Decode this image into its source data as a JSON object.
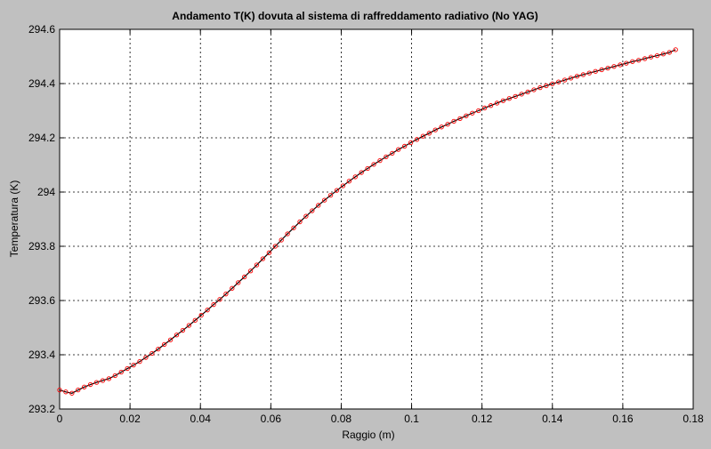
{
  "figure": {
    "background": "#c0c0c0"
  },
  "chart_data": {
    "type": "line",
    "title": "Andamento T(K) dovuta al sistema di raffreddamento radiativo (No YAG)",
    "xlabel": "Raggio (m)",
    "ylabel": "Temperatura (K)",
    "xlim": [
      0,
      0.18
    ],
    "ylim": [
      293.2,
      294.6
    ],
    "xticks": [
      0,
      0.02,
      0.04,
      0.06,
      0.08,
      0.1,
      0.12,
      0.14,
      0.16,
      0.18
    ],
    "xtick_labels": [
      "0",
      "0.02",
      "0.04",
      "0.06",
      "0.08",
      "0.1",
      "0.12",
      "0.14",
      "0.16",
      "0.18"
    ],
    "yticks": [
      293.2,
      293.4,
      293.6,
      293.8,
      294,
      294.2,
      294.4,
      294.6
    ],
    "ytick_labels": [
      "293.2",
      "293.4",
      "293.6",
      "293.8",
      "294",
      "294.2",
      "294.4",
      "294.6"
    ],
    "grid": true,
    "grid_style": "dotted",
    "line_color": "#000000",
    "marker": "circle",
    "marker_color": "#ff0000",
    "x_step": 0.00175,
    "series": [
      {
        "x": [
          0,
          0.00175,
          0.0035,
          0.00525,
          0.007,
          0.00875,
          0.0105,
          0.01225,
          0.014,
          0.01575,
          0.0175,
          0.01925,
          0.021,
          0.02275,
          0.0245,
          0.02625,
          0.028,
          0.02975,
          0.0315,
          0.03325,
          0.035,
          0.03675,
          0.0385,
          0.04025,
          0.042,
          0.04375,
          0.0455,
          0.04725,
          0.049,
          0.05075,
          0.0525,
          0.05425,
          0.056,
          0.05775,
          0.0595,
          0.06125,
          0.063,
          0.06475,
          0.0665,
          0.06825,
          0.07,
          0.07175,
          0.0735,
          0.07525,
          0.077,
          0.07875,
          0.0805,
          0.08225,
          0.084,
          0.08575,
          0.0875,
          0.08925,
          0.091,
          0.09275,
          0.0945,
          0.09625,
          0.098,
          0.09975,
          0.1015,
          0.10325,
          0.105,
          0.10675,
          0.1085,
          0.11025,
          0.112,
          0.11375,
          0.1155,
          0.11725,
          0.119,
          0.12075,
          0.1225,
          0.12425,
          0.126,
          0.12775,
          0.1295,
          0.13125,
          0.133,
          0.13475,
          0.1365,
          0.13825,
          0.14,
          0.14175,
          0.1435,
          0.14525,
          0.147,
          0.14875,
          0.1505,
          0.15225,
          0.154,
          0.15575,
          0.1575,
          0.15925,
          0.161,
          0.16275,
          0.1645,
          0.16625,
          0.168,
          0.16975,
          0.1715,
          0.17325,
          0.175
        ],
        "y": [
          293.27,
          293.263,
          293.258,
          293.27,
          293.281,
          293.29,
          293.298,
          293.305,
          293.312,
          293.323,
          293.336,
          293.349,
          293.362,
          293.375,
          293.39,
          293.405,
          293.421,
          293.438,
          293.455,
          293.473,
          293.49,
          293.508,
          293.527,
          293.546,
          293.565,
          293.585,
          293.604,
          293.624,
          293.645,
          293.666,
          293.687,
          293.709,
          293.731,
          293.754,
          293.776,
          293.8,
          293.823,
          293.846,
          293.868,
          293.89,
          293.911,
          293.931,
          293.951,
          293.97,
          293.988,
          294.006,
          294.023,
          294.04,
          294.056,
          294.072,
          294.087,
          294.102,
          294.116,
          294.13,
          294.143,
          294.157,
          294.169,
          294.182,
          294.194,
          294.206,
          294.217,
          294.229,
          294.24,
          294.25,
          294.261,
          294.271,
          294.281,
          294.291,
          294.3,
          294.31,
          294.319,
          294.328,
          294.337,
          294.345,
          294.353,
          294.361,
          294.369,
          294.377,
          294.385,
          294.392,
          294.399,
          294.406,
          294.413,
          294.42,
          294.427,
          294.433,
          294.439,
          294.445,
          294.451,
          294.457,
          294.463,
          294.469,
          294.475,
          294.481,
          294.486,
          294.492,
          294.498,
          294.503,
          294.509,
          294.515,
          294.525
        ]
      }
    ]
  }
}
